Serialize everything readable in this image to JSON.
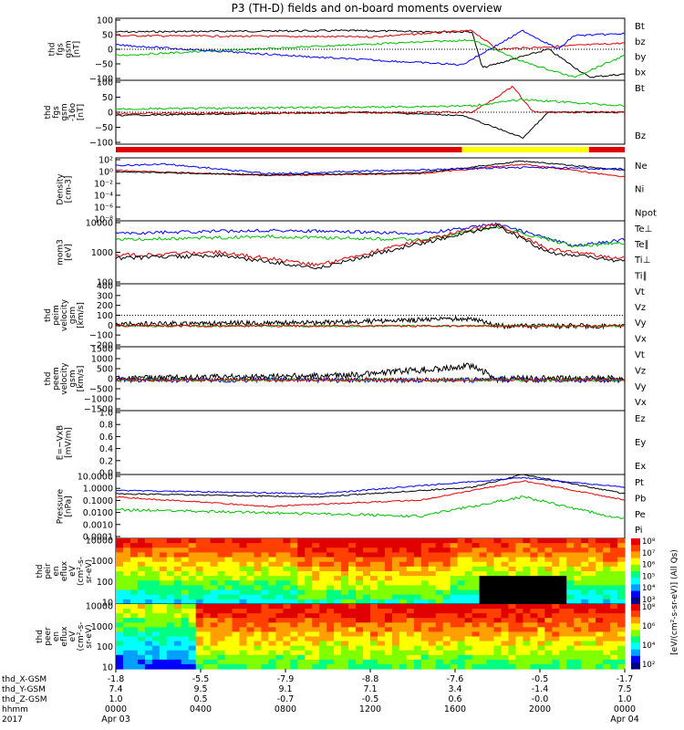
{
  "title": "P3 (TH-D) fields and on-board moments overview",
  "colors": {
    "black": "#000000",
    "red": "#e00000",
    "green": "#00c000",
    "blue": "#0000ff",
    "yellow": "#ffff00"
  },
  "chart_data": {
    "type": "line",
    "title": "P3 (TH-D) fields and on-board moments overview",
    "x_axis": {
      "labels": [
        "0000",
        "0400",
        "0800",
        "1200",
        "1600",
        "2000",
        "0000"
      ],
      "dates": [
        "Apr 03",
        "",
        "",
        "",
        "",
        "",
        "Apr 04"
      ],
      "year": "2017",
      "row_labels": [
        "thd_X-GSM",
        "thd_Y-GSM",
        "thd_Z-GSM",
        "hhmm"
      ],
      "x_gsm": [
        "-1.8",
        "-5.5",
        "-7.9",
        "-8.8",
        "-7.6",
        "-0.5",
        "-1.7"
      ],
      "y_gsm": [
        "7.4",
        "9.5",
        "9.1",
        "7.1",
        "3.4",
        "-1.4",
        "7.5"
      ],
      "z_gsm": [
        "1.0",
        "0.5",
        "-0.7",
        "-0.5",
        "0.6",
        "-0.0",
        "1.0"
      ]
    },
    "panels": [
      {
        "ylabel": [
          "thd",
          "fgs",
          "gsm",
          "[nT]"
        ],
        "yticks": [
          "100",
          "50",
          "0",
          "−50",
          "−100"
        ],
        "legend": [
          {
            "name": "Bt",
            "color": "black"
          },
          {
            "name": "bz",
            "color": "red"
          },
          {
            "name": "by",
            "color": "green"
          },
          {
            "name": "bx",
            "color": "blue"
          }
        ]
      },
      {
        "ylabel": [
          "thd",
          "fgs",
          "gsm",
          "-16o",
          "[nT]"
        ],
        "yticks": [
          "100",
          "50",
          "0",
          "−50",
          "−100"
        ],
        "legend": [
          {
            "name": "Bt",
            "color": "green"
          },
          {
            "name": "Bz",
            "color": "red"
          }
        ]
      },
      {
        "ylabel": [
          "Density",
          "[cm-3]"
        ],
        "yticks": [
          "10²",
          "10⁰",
          "10⁻²",
          "10⁻⁴",
          "10⁻⁶",
          "10⁻⁸"
        ],
        "legend": [
          {
            "name": "Ne",
            "color": "red"
          },
          {
            "name": "Ni",
            "color": "black"
          },
          {
            "name": "Npot",
            "color": "blue"
          }
        ]
      },
      {
        "ylabel": [
          "mom3",
          "[eV]"
        ],
        "yticks": [
          "10000",
          "1000",
          "100"
        ],
        "legend": [
          {
            "name": "Te⊥",
            "color": "red"
          },
          {
            "name": "Te∥",
            "color": "black"
          },
          {
            "name": "Ti⊥",
            "color": "green"
          },
          {
            "name": "Ti∥",
            "color": "green"
          }
        ]
      },
      {
        "ylabel": [
          "thd",
          "peim",
          "velocity",
          "gsm",
          "[km/s]"
        ],
        "yticks": [
          "400",
          "300",
          "200",
          "100",
          "0",
          "−100",
          "−200"
        ],
        "legend": [
          {
            "name": "Vt",
            "color": "black"
          },
          {
            "name": "Vz",
            "color": "red"
          },
          {
            "name": "Vy",
            "color": "green"
          },
          {
            "name": "Vx",
            "color": "blue"
          }
        ]
      },
      {
        "ylabel": [
          "thd",
          "peem",
          "velocity",
          "gsm",
          "[km/s]"
        ],
        "yticks": [
          "1500",
          "1000",
          "500",
          "0",
          "−500",
          "−1000",
          "−1500"
        ],
        "legend": [
          {
            "name": "Vt",
            "color": "black"
          },
          {
            "name": "Vz",
            "color": "red"
          },
          {
            "name": "Vy",
            "color": "green"
          },
          {
            "name": "Vx",
            "color": "blue"
          }
        ]
      },
      {
        "ylabel": [
          "E=−VxB",
          "[mV/m]"
        ],
        "yticks": [
          "1.0",
          "0.8",
          "0.6",
          "0.4",
          "0.2",
          "0.0"
        ],
        "legend": [
          {
            "name": "Ez",
            "color": "red"
          },
          {
            "name": "Ey",
            "color": "green"
          },
          {
            "name": "Ex",
            "color": "blue"
          }
        ]
      },
      {
        "ylabel": [
          "Pressure",
          "[nPa]"
        ],
        "yticks": [
          "10.0000",
          "1.0000",
          "0.1000",
          "0.0100",
          "0.0010",
          "0.0001"
        ],
        "legend": [
          {
            "name": "Pt",
            "color": "black"
          },
          {
            "name": "Pb",
            "color": "red"
          },
          {
            "name": "Pe",
            "color": "green"
          },
          {
            "name": "Pi",
            "color": "blue"
          }
        ]
      },
      {
        "ylabel": [
          "thd",
          "peir",
          "en",
          "eflux",
          "eV",
          "(cm²-s-",
          "sr-eV)"
        ],
        "yticks": [
          "10000",
          "1000",
          "100",
          "10"
        ]
      },
      {
        "ylabel": [
          "thd",
          "peer",
          "en",
          "eflux",
          "eV",
          "(cm²-s-",
          "sr-eV)"
        ],
        "yticks": [
          "10000",
          "1000",
          "100",
          "10"
        ]
      }
    ],
    "colorbars": [
      {
        "ticks": [
          "10⁸",
          "10⁷",
          "10⁶",
          "10⁵",
          "10⁴",
          "10³"
        ]
      },
      {
        "ticks": [
          "10⁸",
          "10⁶",
          "10⁴",
          "10²"
        ]
      }
    ],
    "colorbar_label": "[eV/(cm²-s-sr-eV)] (All Qs)"
  }
}
